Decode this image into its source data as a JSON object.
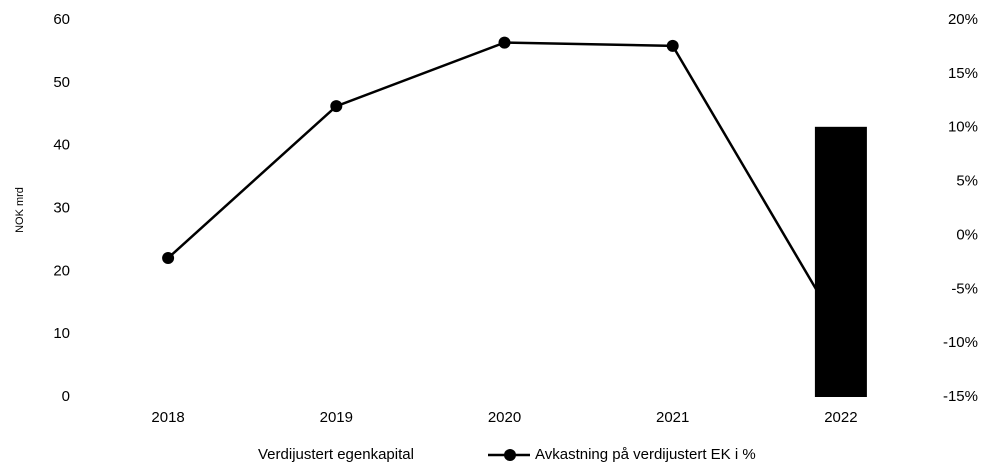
{
  "chart_data": {
    "type": "bar",
    "categories": [
      "2018",
      "2019",
      "2020",
      "2021",
      "2022"
    ],
    "y_label": "NOK mrd",
    "ylim": [
      0,
      60
    ],
    "yticks": [
      0,
      10,
      20,
      30,
      40,
      50,
      60
    ],
    "y2lim": [
      -15,
      20
    ],
    "y2ticks": [
      {
        "value": -15,
        "label": "-15%"
      },
      {
        "value": -10,
        "label": "-10%"
      },
      {
        "value": -5,
        "label": "-5%"
      },
      {
        "value": 0,
        "label": "0%"
      },
      {
        "value": 5,
        "label": "5%"
      },
      {
        "value": 10,
        "label": "10%"
      },
      {
        "value": 15,
        "label": "15%"
      },
      {
        "value": 20,
        "label": "20%"
      }
    ],
    "series": [
      {
        "name": "Verdijustert egenkapital",
        "type": "bar",
        "color": "#000000",
        "values": [
          null,
          null,
          null,
          null,
          43
        ]
      },
      {
        "name": "Avkastning på verdijustert EK i %",
        "type": "line",
        "axis": "y2",
        "color": "#000000",
        "values": [
          -2.1,
          12,
          17.9,
          17.6,
          -8.9
        ]
      }
    ]
  }
}
